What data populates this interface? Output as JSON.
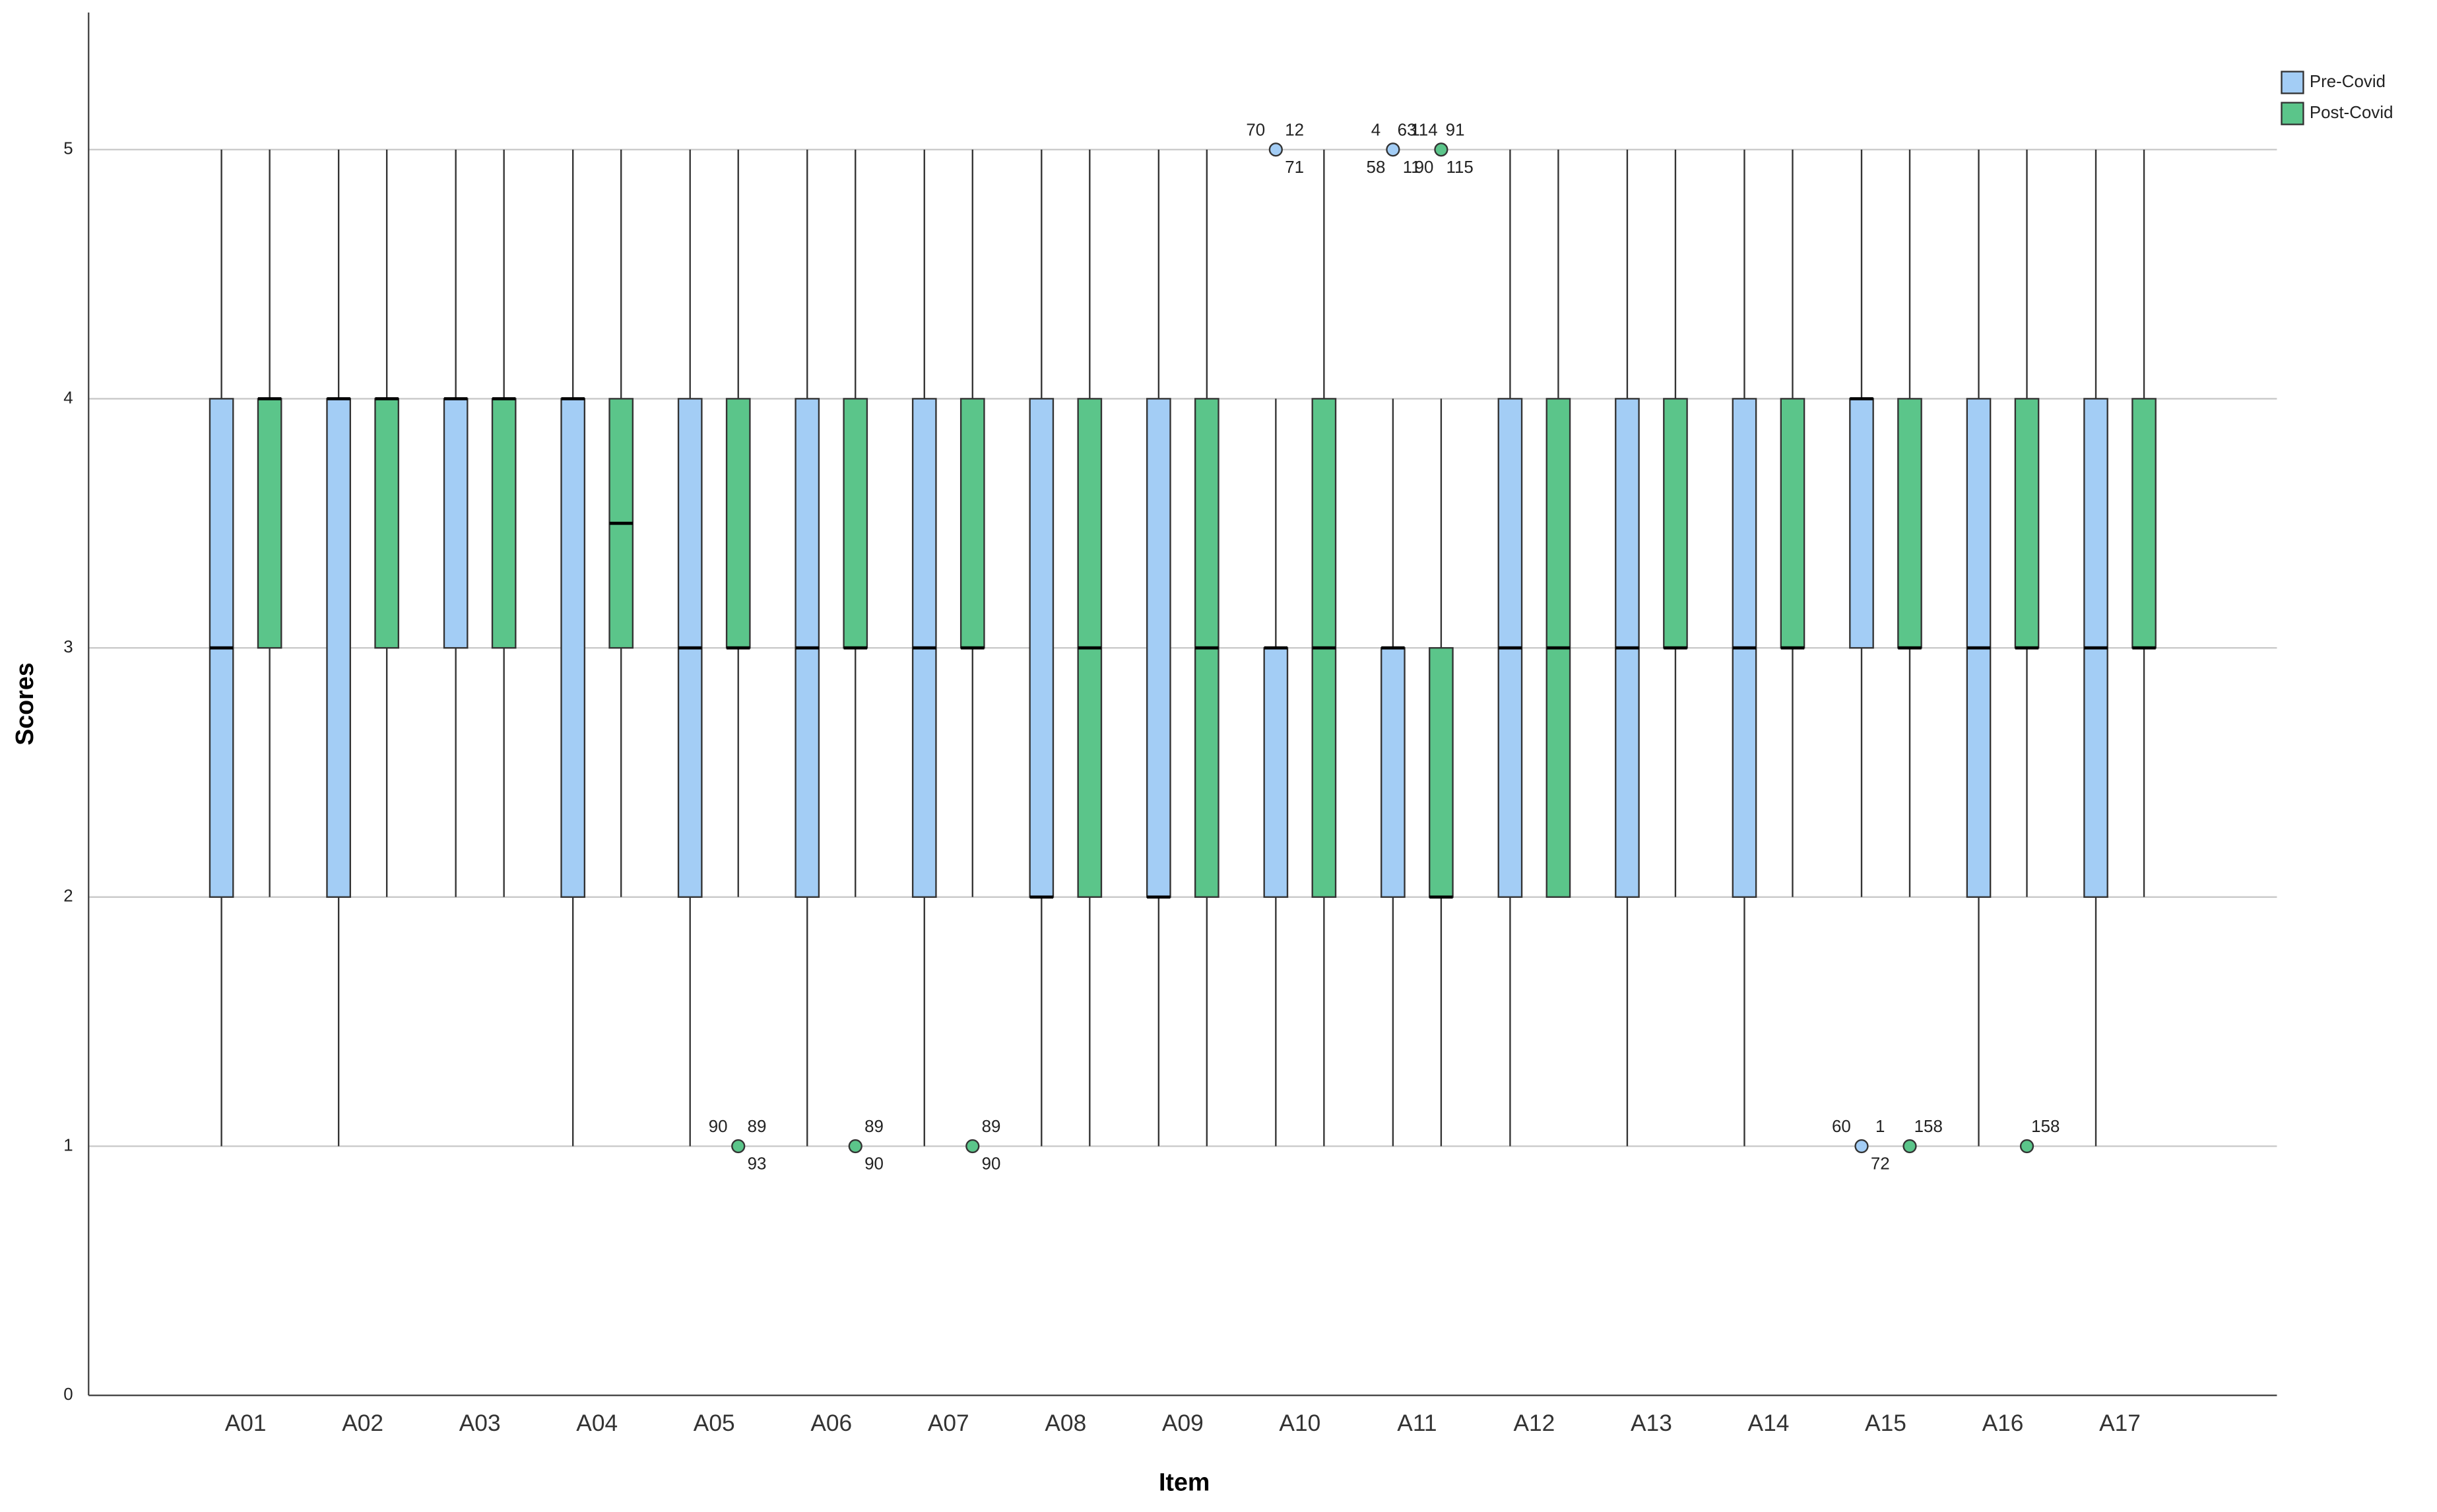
{
  "chart_data": {
    "type": "boxplot",
    "x_label": "Item",
    "y_label": "Scores",
    "categories": [
      "A01",
      "A02",
      "A03",
      "A04",
      "A05",
      "A06",
      "A07",
      "A08",
      "A09",
      "A10",
      "A11",
      "A12",
      "A13",
      "A14",
      "A15",
      "A16",
      "A17"
    ],
    "ylim": [
      0,
      5.55
    ],
    "yticks": [
      0,
      1,
      2,
      3,
      4,
      5
    ],
    "grid": true,
    "legend": "top-right",
    "series": [
      {
        "name": "Pre-Covid",
        "color": "#a3cdf5",
        "boxes": [
          {
            "low": 1,
            "q1": 2,
            "median": 3,
            "q3": 4,
            "high": 5,
            "outliers": []
          },
          {
            "low": 1,
            "q1": 2,
            "median": 4,
            "q3": 4,
            "high": 5,
            "outliers": []
          },
          {
            "low": 2,
            "q1": 3,
            "median": 4,
            "q3": 4,
            "high": 5,
            "outliers": []
          },
          {
            "low": 1,
            "q1": 2,
            "median": 4,
            "q3": 4,
            "high": 5,
            "outliers": []
          },
          {
            "low": 1,
            "q1": 2,
            "median": 3,
            "q3": 4,
            "high": 5,
            "outliers": []
          },
          {
            "low": 1,
            "q1": 2,
            "median": 3,
            "q3": 4,
            "high": 5,
            "outliers": []
          },
          {
            "low": 1,
            "q1": 2,
            "median": 3,
            "q3": 4,
            "high": 5,
            "outliers": []
          },
          {
            "low": 1,
            "q1": 2,
            "median": 2,
            "q3": 4,
            "high": 5,
            "outliers": []
          },
          {
            "low": 1,
            "q1": 2,
            "median": 2,
            "q3": 4,
            "high": 5,
            "outliers": []
          },
          {
            "low": 1,
            "q1": 2,
            "median": 3,
            "q3": 3,
            "high": 4,
            "outliers": [
              {
                "value": 5,
                "labels": [
                  "70",
                  "12",
                  "71"
                ]
              }
            ]
          },
          {
            "low": 1,
            "q1": 2,
            "median": 3,
            "q3": 3,
            "high": 4,
            "outliers": [
              {
                "value": 5,
                "labels": [
                  "4",
                  "63",
                  "11",
                  "58"
                ]
              }
            ]
          },
          {
            "low": 1,
            "q1": 2,
            "median": 3,
            "q3": 4,
            "high": 5,
            "outliers": []
          },
          {
            "low": 1,
            "q1": 2,
            "median": 3,
            "q3": 4,
            "high": 5,
            "outliers": []
          },
          {
            "low": 1,
            "q1": 2,
            "median": 3,
            "q3": 4,
            "high": 5,
            "outliers": []
          },
          {
            "low": 2,
            "q1": 3,
            "median": 4,
            "q3": 4,
            "high": 5,
            "outliers": [
              {
                "value": 1,
                "labels": [
                  "60",
                  "1",
                  "72"
                ]
              }
            ]
          },
          {
            "low": 1,
            "q1": 2,
            "median": 3,
            "q3": 4,
            "high": 5,
            "outliers": []
          },
          {
            "low": 1,
            "q1": 2,
            "median": 3,
            "q3": 4,
            "high": 5,
            "outliers": []
          }
        ]
      },
      {
        "name": "Post-Covid",
        "color": "#5bc58a",
        "boxes": [
          {
            "low": 2,
            "q1": 3,
            "median": 4,
            "q3": 4,
            "high": 5,
            "outliers": []
          },
          {
            "low": 2,
            "q1": 3,
            "median": 4,
            "q3": 4,
            "high": 5,
            "outliers": []
          },
          {
            "low": 2,
            "q1": 3,
            "median": 4,
            "q3": 4,
            "high": 5,
            "outliers": []
          },
          {
            "low": 2,
            "q1": 3,
            "median": 3.5,
            "q3": 4,
            "high": 5,
            "outliers": []
          },
          {
            "low": 2,
            "q1": 3,
            "median": 3,
            "q3": 4,
            "high": 5,
            "outliers": [
              {
                "value": 1,
                "labels": [
                  "90",
                  "89",
                  "93"
                ]
              }
            ]
          },
          {
            "low": 2,
            "q1": 3,
            "median": 3,
            "q3": 4,
            "high": 5,
            "outliers": [
              {
                "value": 1,
                "labels": [
                  "89",
                  "90"
                ]
              }
            ]
          },
          {
            "low": 2,
            "q1": 3,
            "median": 3,
            "q3": 4,
            "high": 5,
            "outliers": [
              {
                "value": 1,
                "labels": [
                  "89",
                  "90"
                ]
              }
            ]
          },
          {
            "low": 1,
            "q1": 2,
            "median": 3,
            "q3": 4,
            "high": 5,
            "outliers": []
          },
          {
            "low": 1,
            "q1": 2,
            "median": 3,
            "q3": 4,
            "high": 5,
            "outliers": []
          },
          {
            "low": 1,
            "q1": 2,
            "median": 3,
            "q3": 4,
            "high": 5,
            "outliers": []
          },
          {
            "low": 1,
            "q1": 2,
            "median": 2,
            "q3": 3,
            "high": 4,
            "outliers": [
              {
                "value": 5,
                "labels": [
                  "114",
                  "91",
                  "115",
                  "90"
                ]
              }
            ]
          },
          {
            "low": 2,
            "q1": 2,
            "median": 3,
            "q3": 4,
            "high": 5,
            "outliers": []
          },
          {
            "low": 2,
            "q1": 3,
            "median": 3,
            "q3": 4,
            "high": 5,
            "outliers": []
          },
          {
            "low": 2,
            "q1": 3,
            "median": 3,
            "q3": 4,
            "high": 5,
            "outliers": []
          },
          {
            "low": 2,
            "q1": 3,
            "median": 3,
            "q3": 4,
            "high": 5,
            "outliers": [
              {
                "value": 1,
                "labels": [
                  "158"
                ]
              }
            ]
          },
          {
            "low": 2,
            "q1": 3,
            "median": 3,
            "q3": 4,
            "high": 5,
            "outliers": [
              {
                "value": 1,
                "labels": [
                  "158"
                ]
              }
            ]
          },
          {
            "low": 2,
            "q1": 3,
            "median": 3,
            "q3": 4,
            "high": 5,
            "outliers": []
          }
        ]
      }
    ]
  }
}
